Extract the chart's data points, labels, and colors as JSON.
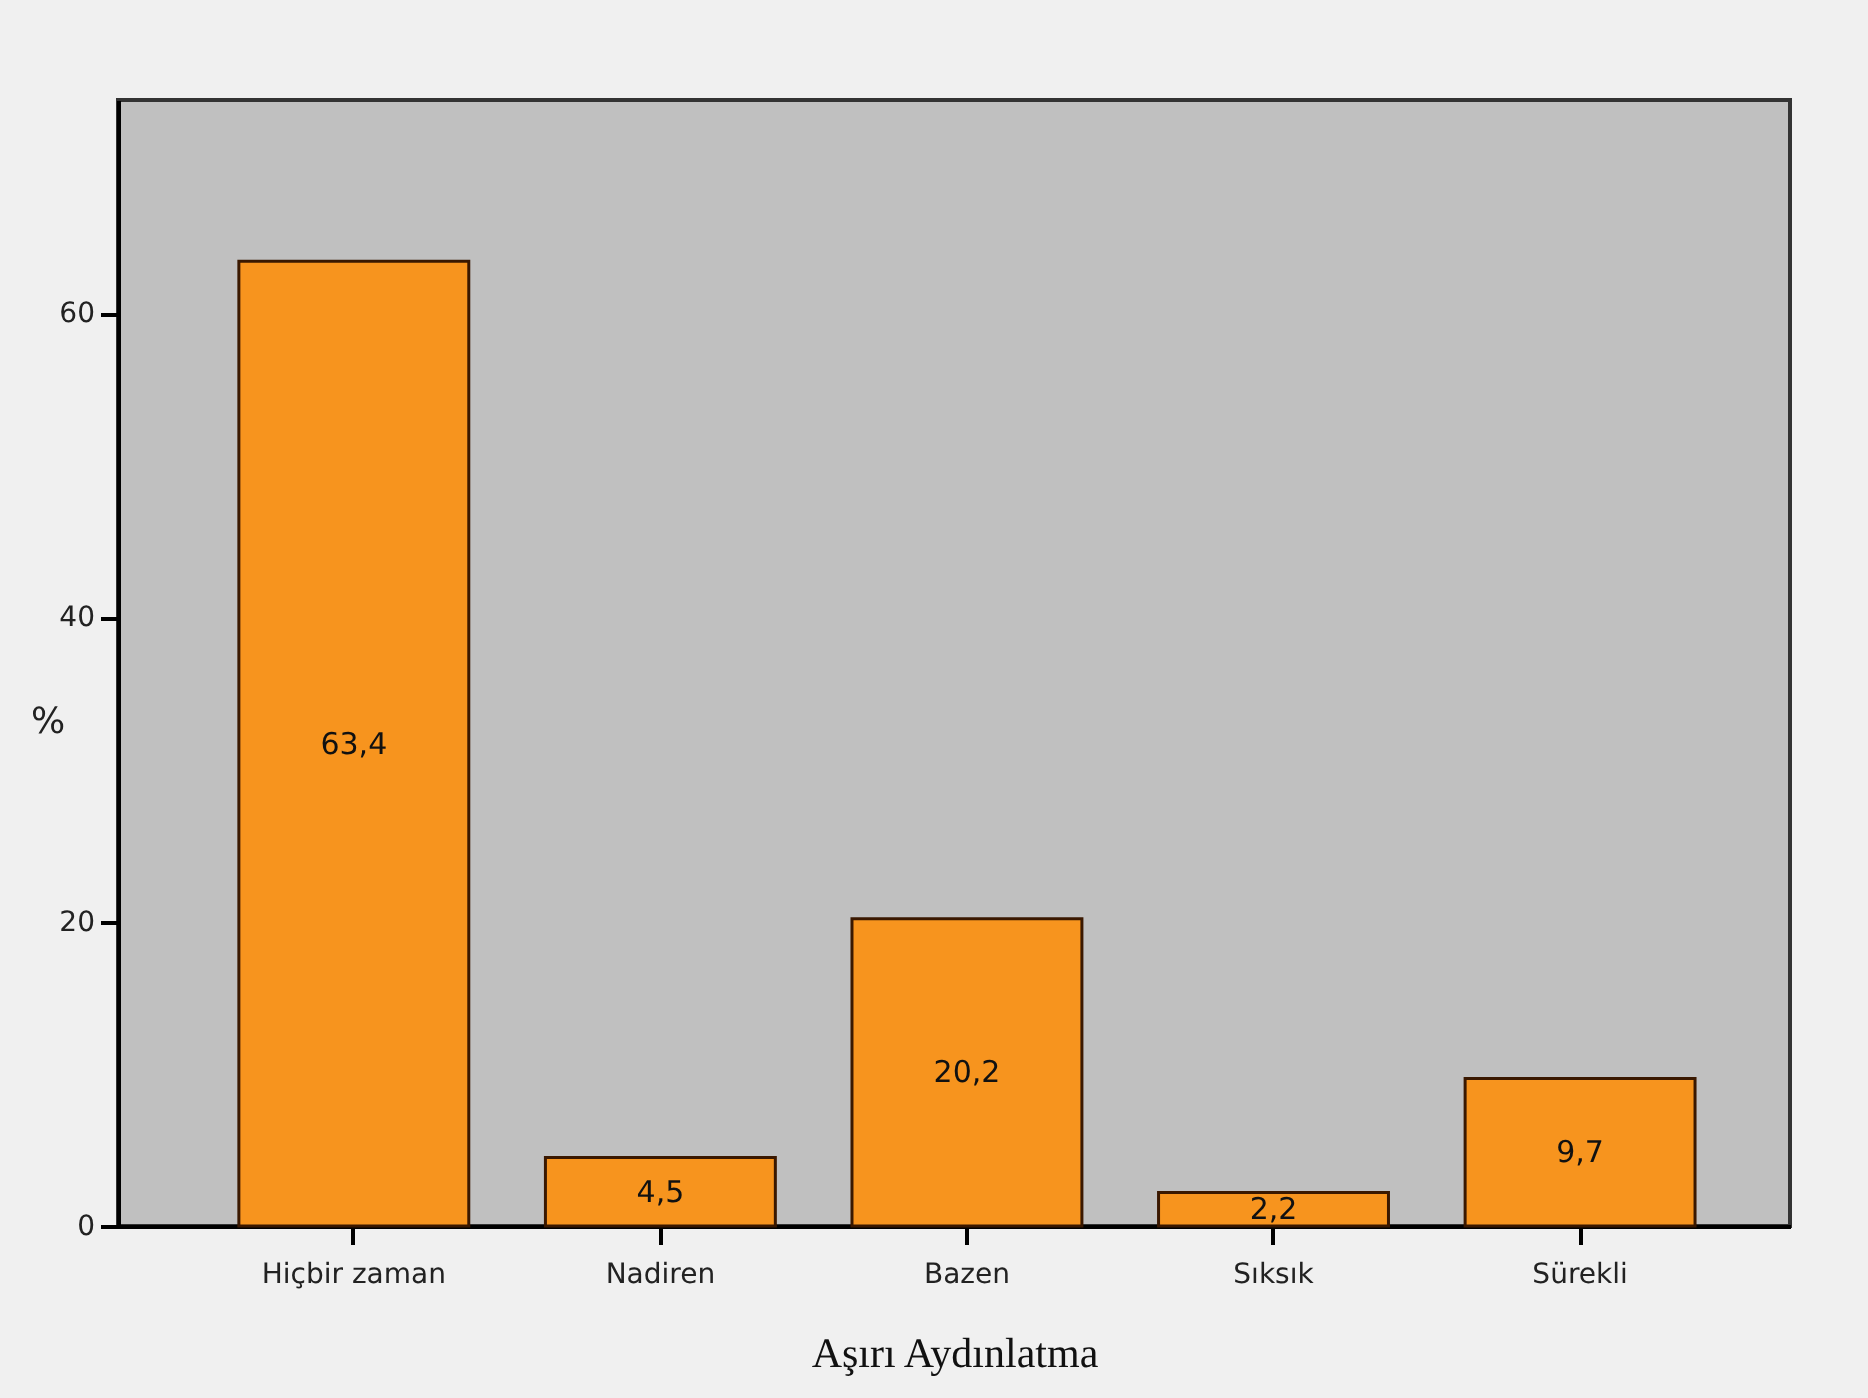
{
  "chart_data": {
    "type": "bar",
    "xlabel": "Aşırı Aydınlatma",
    "ylabel": "%",
    "categories": [
      "Hiçbir zaman",
      "Nadiren",
      "Bazen",
      "Sıksık",
      "Sürekli"
    ],
    "values": [
      63.4,
      4.5,
      20.2,
      2.2,
      9.7
    ],
    "color": "#f7941e",
    "value_labels": [
      "63,4",
      "4,5",
      "20,2",
      "2,2",
      "9,7"
    ],
    "ylim": [
      0,
      74
    ],
    "yticks": [
      0,
      20,
      40,
      60
    ]
  }
}
